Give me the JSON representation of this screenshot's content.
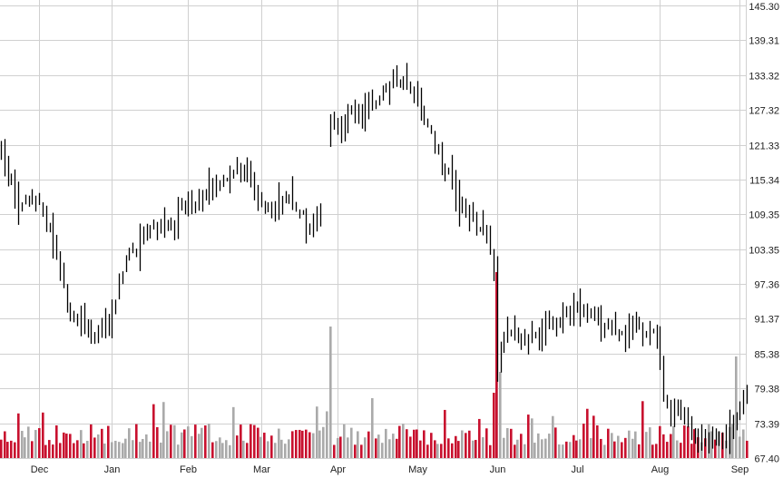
{
  "chart_data": {
    "type": "bar",
    "subtype": "ohlc-price-with-volume",
    "title": "",
    "xlabel": "",
    "ylabel": "",
    "grid": true,
    "y_axis_position": "right",
    "ylim": [
      67.4,
      145.3
    ],
    "y_ticks": [
      "145.30",
      "139.31",
      "133.32",
      "127.32",
      "121.33",
      "115.34",
      "109.35",
      "103.35",
      "97.36",
      "91.37",
      "85.38",
      "79.38",
      "73.39",
      "67.40"
    ],
    "x_ticks": [
      {
        "label": "Dec",
        "index": 11
      },
      {
        "label": "Jan",
        "index": 32
      },
      {
        "label": "Feb",
        "index": 54
      },
      {
        "label": "Mar",
        "index": 75
      },
      {
        "label": "Apr",
        "index": 97
      },
      {
        "label": "May",
        "index": 120
      },
      {
        "label": "Jun",
        "index": 143
      },
      {
        "label": "Jul",
        "index": 166
      },
      {
        "label": "Aug",
        "index": 190
      },
      {
        "label": "Sep",
        "index": 213
      }
    ],
    "colors": {
      "price_bar": "#000000",
      "volume_up": "#aaaaaa",
      "volume_down": "#c8102e",
      "grid": "#d0d0d0",
      "axis_text": "#222222"
    },
    "price_series": {
      "name": "",
      "anchors": [
        [
          0,
          119.5
        ],
        [
          3,
          114.5
        ],
        [
          5,
          110
        ],
        [
          8,
          112
        ],
        [
          11,
          111.5
        ],
        [
          14,
          106
        ],
        [
          17,
          100
        ],
        [
          20,
          92
        ],
        [
          24,
          90
        ],
        [
          27,
          88
        ],
        [
          31,
          91
        ],
        [
          34,
          97
        ],
        [
          37,
          102
        ],
        [
          40,
          105
        ],
        [
          44,
          107
        ],
        [
          48,
          108
        ],
        [
          52,
          110
        ],
        [
          56,
          112
        ],
        [
          60,
          114
        ],
        [
          64,
          115
        ],
        [
          68,
          117.5
        ],
        [
          71,
          116
        ],
        [
          74,
          112
        ],
        [
          78,
          110
        ],
        [
          82,
          112
        ],
        [
          86,
          110
        ],
        [
          89,
          107
        ],
        [
          92,
          110
        ],
        [
          95,
          125.5
        ],
        [
          98,
          124
        ],
        [
          101,
          126
        ],
        [
          104,
          127
        ],
        [
          108,
          129
        ],
        [
          112,
          132
        ],
        [
          116,
          131.5
        ],
        [
          120,
          129
        ],
        [
          123,
          125
        ],
        [
          126,
          120
        ],
        [
          129,
          116
        ],
        [
          132,
          111
        ],
        [
          135,
          109
        ],
        [
          138,
          107
        ],
        [
          140,
          106
        ],
        [
          142,
          99
        ],
        [
          143,
          84
        ],
        [
          145,
          88
        ],
        [
          148,
          89
        ],
        [
          152,
          88
        ],
        [
          156,
          89
        ],
        [
          160,
          91
        ],
        [
          164,
          93
        ],
        [
          167,
          94
        ],
        [
          170,
          92
        ],
        [
          173,
          89
        ],
        [
          176,
          90
        ],
        [
          179,
          89
        ],
        [
          183,
          90
        ],
        [
          187,
          89
        ],
        [
          189,
          88
        ],
        [
          191,
          79
        ],
        [
          193,
          76
        ],
        [
          196,
          77
        ],
        [
          199,
          72
        ],
        [
          202,
          71
        ],
        [
          206,
          70
        ],
        [
          210,
          71.5
        ],
        [
          212,
          74
        ],
        [
          214,
          78
        ]
      ]
    }
  }
}
